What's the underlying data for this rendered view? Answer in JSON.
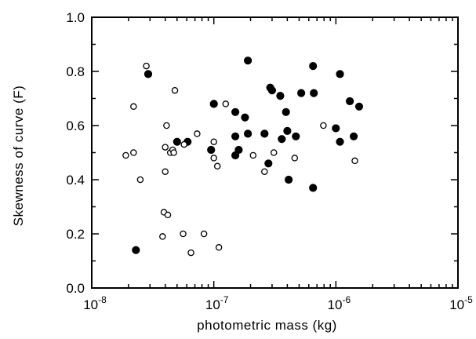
{
  "chart_data": {
    "type": "scatter",
    "title": "",
    "xlabel": "photometric  mass  (kg)",
    "ylabel": "Skewness  of  curve  (F)",
    "xscale": "log",
    "xlim": [
      1e-08,
      1e-05
    ],
    "ylim": [
      0.0,
      1.0
    ],
    "grid": false,
    "x_tick_labels": [
      {
        "base": "10",
        "exp": "-8"
      },
      {
        "base": "10",
        "exp": "-7"
      },
      {
        "base": "10",
        "exp": "-6"
      },
      {
        "base": "10",
        "exp": "-5"
      }
    ],
    "y_tick_labels": [
      "0.0",
      "0.2",
      "0.4",
      "0.6",
      "0.8",
      "1.0"
    ],
    "colors": {
      "marker": "#000000",
      "open_fill": "#ffffff"
    },
    "series": [
      {
        "marker": "filled-circle",
        "points": [
          {
            "x": 2.9e-08,
            "y": 0.79
          },
          {
            "x": 2.3e-08,
            "y": 0.14
          },
          {
            "x": 5e-08,
            "y": 0.54
          },
          {
            "x": 6.1e-08,
            "y": 0.54
          },
          {
            "x": 9.5e-08,
            "y": 0.51
          },
          {
            "x": 1e-07,
            "y": 0.68
          },
          {
            "x": 1.5e-07,
            "y": 0.65
          },
          {
            "x": 1.5e-07,
            "y": 0.56
          },
          {
            "x": 1.5e-07,
            "y": 0.49
          },
          {
            "x": 1.6e-07,
            "y": 0.51
          },
          {
            "x": 1.8e-07,
            "y": 0.63
          },
          {
            "x": 1.9e-07,
            "y": 0.84
          },
          {
            "x": 1.9e-07,
            "y": 0.57
          },
          {
            "x": 2.6e-07,
            "y": 0.57
          },
          {
            "x": 2.8e-07,
            "y": 0.46
          },
          {
            "x": 2.9e-07,
            "y": 0.74
          },
          {
            "x": 3e-07,
            "y": 0.73
          },
          {
            "x": 3.5e-07,
            "y": 0.71
          },
          {
            "x": 3.6e-07,
            "y": 0.55
          },
          {
            "x": 3.9e-07,
            "y": 0.65
          },
          {
            "x": 4e-07,
            "y": 0.58
          },
          {
            "x": 4.1e-07,
            "y": 0.4
          },
          {
            "x": 4.7e-07,
            "y": 0.56
          },
          {
            "x": 5.2e-07,
            "y": 0.72
          },
          {
            "x": 6.5e-07,
            "y": 0.82
          },
          {
            "x": 6.6e-07,
            "y": 0.72
          },
          {
            "x": 6.5e-07,
            "y": 0.37
          },
          {
            "x": 1e-06,
            "y": 0.59
          },
          {
            "x": 1.08e-06,
            "y": 0.79
          },
          {
            "x": 1.08e-06,
            "y": 0.54
          },
          {
            "x": 1.3e-06,
            "y": 0.69
          },
          {
            "x": 1.4e-06,
            "y": 0.56
          },
          {
            "x": 1.55e-06,
            "y": 0.67
          }
        ]
      },
      {
        "marker": "open-circle",
        "points": [
          {
            "x": 1.9e-08,
            "y": 0.49
          },
          {
            "x": 2.2e-08,
            "y": 0.67
          },
          {
            "x": 2.2e-08,
            "y": 0.5
          },
          {
            "x": 2.5e-08,
            "y": 0.4
          },
          {
            "x": 2.8e-08,
            "y": 0.82
          },
          {
            "x": 3.8e-08,
            "y": 0.19
          },
          {
            "x": 3.9e-08,
            "y": 0.28
          },
          {
            "x": 4e-08,
            "y": 0.52
          },
          {
            "x": 4e-08,
            "y": 0.43
          },
          {
            "x": 4.1e-08,
            "y": 0.6
          },
          {
            "x": 4.2e-08,
            "y": 0.27
          },
          {
            "x": 4.4e-08,
            "y": 0.5
          },
          {
            "x": 4.6e-08,
            "y": 0.51
          },
          {
            "x": 4.7e-08,
            "y": 0.5
          },
          {
            "x": 4.8e-08,
            "y": 0.73
          },
          {
            "x": 5.6e-08,
            "y": 0.2
          },
          {
            "x": 5.7e-08,
            "y": 0.53
          },
          {
            "x": 6.5e-08,
            "y": 0.13
          },
          {
            "x": 7.3e-08,
            "y": 0.57
          },
          {
            "x": 8.3e-08,
            "y": 0.2
          },
          {
            "x": 1e-07,
            "y": 0.54
          },
          {
            "x": 1e-07,
            "y": 0.48
          },
          {
            "x": 1.07e-07,
            "y": 0.45
          },
          {
            "x": 1.1e-07,
            "y": 0.15
          },
          {
            "x": 1.25e-07,
            "y": 0.68
          },
          {
            "x": 2.1e-07,
            "y": 0.49
          },
          {
            "x": 2.6e-07,
            "y": 0.43
          },
          {
            "x": 3.1e-07,
            "y": 0.5
          },
          {
            "x": 4.6e-07,
            "y": 0.48
          },
          {
            "x": 7.9e-07,
            "y": 0.6
          },
          {
            "x": 1.43e-06,
            "y": 0.47
          }
        ]
      }
    ]
  }
}
